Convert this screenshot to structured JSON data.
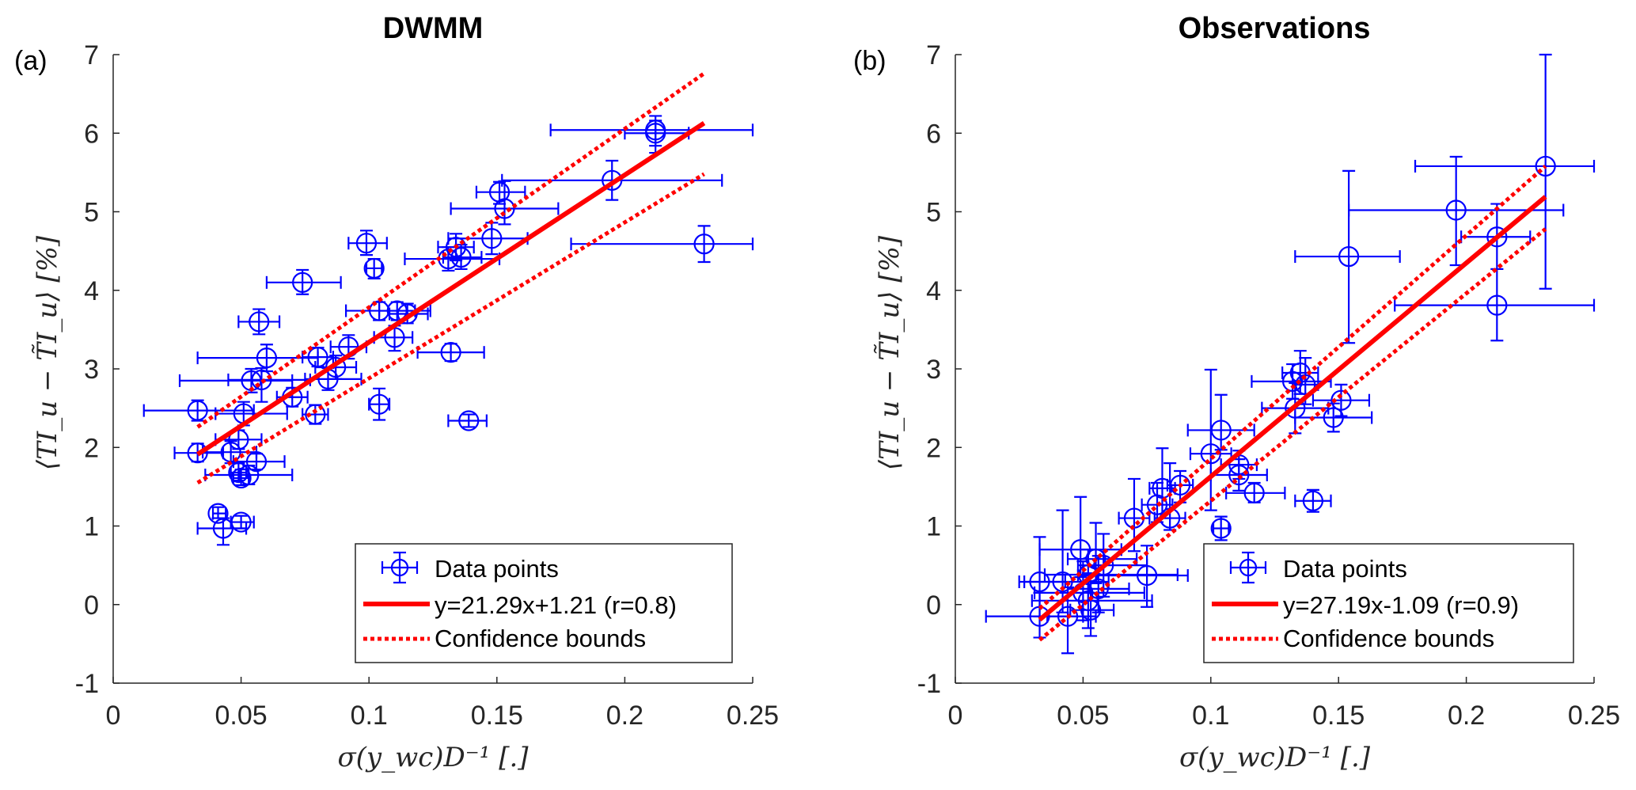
{
  "chart_data": [
    {
      "type": "scatter",
      "panel_label": "(a)",
      "title": "DWMM",
      "xlabel": "σ(y_wc)D⁻¹ [.]",
      "ylabel": "⟨TI_u − T̃I_u⟩ [%]",
      "xlim": [
        0,
        0.25
      ],
      "ylim": [
        -1,
        7
      ],
      "xticks": [
        0,
        0.05,
        0.1,
        0.15,
        0.2,
        0.25
      ],
      "xtick_labels": [
        "0",
        "0.05",
        "0.1",
        "0.15",
        "0.2",
        "0.25"
      ],
      "yticks": [
        -1,
        0,
        1,
        2,
        3,
        4,
        5,
        6,
        7
      ],
      "ytick_labels": [
        "-1",
        "0",
        "1",
        "2",
        "3",
        "4",
        "5",
        "6",
        "7"
      ],
      "grid": false,
      "legend_position": "bottom-right",
      "legend": [
        "Data points",
        "y=21.29x+1.21 (r=0.8)",
        "Confidence bounds"
      ],
      "fit": {
        "slope": 21.29,
        "intercept": 1.21,
        "r": 0.8,
        "x_range": [
          0.033,
          0.231
        ]
      },
      "confidence_bounds": {
        "upper": [
          [
            0.033,
            2.26
          ],
          [
            0.231,
            6.76
          ]
        ],
        "lower": [
          [
            0.033,
            1.55
          ],
          [
            0.231,
            5.48
          ]
        ]
      },
      "points": [
        {
          "x": 0.212,
          "y": 6.04,
          "xlo": 0.171,
          "xhi": 0.25,
          "ylo": 5.75,
          "yhi": 6.22
        },
        {
          "x": 0.212,
          "y": 6.0,
          "xlo": 0.2,
          "xhi": 0.225,
          "ylo": 5.84,
          "yhi": 6.16
        },
        {
          "x": 0.195,
          "y": 5.4,
          "xlo": 0.152,
          "xhi": 0.238,
          "ylo": 5.15,
          "yhi": 5.65
        },
        {
          "x": 0.231,
          "y": 4.59,
          "xlo": 0.179,
          "xhi": 0.25,
          "ylo": 4.36,
          "yhi": 4.82
        },
        {
          "x": 0.151,
          "y": 5.25,
          "xlo": 0.142,
          "xhi": 0.161,
          "ylo": 5.1,
          "yhi": 5.38
        },
        {
          "x": 0.153,
          "y": 5.04,
          "xlo": 0.132,
          "xhi": 0.174,
          "ylo": 4.84,
          "yhi": 5.39
        },
        {
          "x": 0.148,
          "y": 4.66,
          "xlo": 0.131,
          "xhi": 0.162,
          "ylo": 4.46,
          "yhi": 4.86
        },
        {
          "x": 0.134,
          "y": 4.55,
          "xlo": 0.127,
          "xhi": 0.141,
          "ylo": 4.38,
          "yhi": 4.72
        },
        {
          "x": 0.136,
          "y": 4.42,
          "xlo": 0.129,
          "xhi": 0.144,
          "ylo": 4.27,
          "yhi": 4.58
        },
        {
          "x": 0.131,
          "y": 4.4,
          "xlo": 0.114,
          "xhi": 0.151,
          "ylo": 4.25,
          "yhi": 4.55
        },
        {
          "x": 0.099,
          "y": 4.6,
          "xlo": 0.092,
          "xhi": 0.107,
          "ylo": 4.45,
          "yhi": 4.76
        },
        {
          "x": 0.102,
          "y": 4.28,
          "xlo": 0.099,
          "xhi": 0.105,
          "ylo": 4.15,
          "yhi": 4.4
        },
        {
          "x": 0.074,
          "y": 4.1,
          "xlo": 0.06,
          "xhi": 0.089,
          "ylo": 3.95,
          "yhi": 4.26
        },
        {
          "x": 0.057,
          "y": 3.6,
          "xlo": 0.049,
          "xhi": 0.065,
          "ylo": 3.44,
          "yhi": 3.76
        },
        {
          "x": 0.104,
          "y": 3.74,
          "xlo": 0.091,
          "xhi": 0.124,
          "ylo": 3.62,
          "yhi": 3.85
        },
        {
          "x": 0.111,
          "y": 3.74,
          "xlo": 0.104,
          "xhi": 0.118,
          "ylo": 3.62,
          "yhi": 3.85
        },
        {
          "x": 0.115,
          "y": 3.7,
          "xlo": 0.108,
          "xhi": 0.123,
          "ylo": 3.58,
          "yhi": 3.83
        },
        {
          "x": 0.11,
          "y": 3.4,
          "xlo": 0.102,
          "xhi": 0.117,
          "ylo": 3.23,
          "yhi": 3.55
        },
        {
          "x": 0.092,
          "y": 3.28,
          "xlo": 0.085,
          "xhi": 0.099,
          "ylo": 3.13,
          "yhi": 3.43
        },
        {
          "x": 0.132,
          "y": 3.21,
          "xlo": 0.119,
          "xhi": 0.145,
          "ylo": 3.1,
          "yhi": 3.32
        },
        {
          "x": 0.06,
          "y": 3.14,
          "xlo": 0.033,
          "xhi": 0.08,
          "ylo": 2.97,
          "yhi": 3.31
        },
        {
          "x": 0.08,
          "y": 3.15,
          "xlo": 0.074,
          "xhi": 0.086,
          "ylo": 3.03,
          "yhi": 3.27
        },
        {
          "x": 0.087,
          "y": 3.02,
          "xlo": 0.079,
          "xhi": 0.095,
          "ylo": 2.87,
          "yhi": 3.17
        },
        {
          "x": 0.054,
          "y": 2.85,
          "xlo": 0.026,
          "xhi": 0.07,
          "ylo": 2.7,
          "yhi": 3.0
        },
        {
          "x": 0.058,
          "y": 2.86,
          "xlo": 0.045,
          "xhi": 0.077,
          "ylo": 2.58,
          "yhi": 3.01
        },
        {
          "x": 0.084,
          "y": 2.87,
          "xlo": 0.075,
          "xhi": 0.097,
          "ylo": 2.73,
          "yhi": 3.01
        },
        {
          "x": 0.07,
          "y": 2.64,
          "xlo": 0.064,
          "xhi": 0.076,
          "ylo": 2.52,
          "yhi": 2.76
        },
        {
          "x": 0.079,
          "y": 2.42,
          "xlo": 0.074,
          "xhi": 0.084,
          "ylo": 2.3,
          "yhi": 2.54
        },
        {
          "x": 0.104,
          "y": 2.55,
          "xlo": 0.1,
          "xhi": 0.108,
          "ylo": 2.35,
          "yhi": 2.75
        },
        {
          "x": 0.139,
          "y": 2.34,
          "xlo": 0.131,
          "xhi": 0.146,
          "ylo": 2.26,
          "yhi": 2.42
        },
        {
          "x": 0.033,
          "y": 2.47,
          "xlo": 0.012,
          "xhi": 0.055,
          "ylo": 2.34,
          "yhi": 2.6
        },
        {
          "x": 0.051,
          "y": 2.43,
          "xlo": 0.04,
          "xhi": 0.068,
          "ylo": 2.28,
          "yhi": 2.58
        },
        {
          "x": 0.049,
          "y": 2.1,
          "xlo": 0.04,
          "xhi": 0.058,
          "ylo": 1.98,
          "yhi": 2.22
        },
        {
          "x": 0.033,
          "y": 1.93,
          "xlo": 0.024,
          "xhi": 0.043,
          "ylo": 1.82,
          "yhi": 2.05
        },
        {
          "x": 0.046,
          "y": 1.94,
          "xlo": 0.035,
          "xhi": 0.056,
          "ylo": 1.8,
          "yhi": 2.08
        },
        {
          "x": 0.056,
          "y": 1.82,
          "xlo": 0.047,
          "xhi": 0.067,
          "ylo": 1.72,
          "yhi": 1.92
        },
        {
          "x": 0.049,
          "y": 1.68,
          "xlo": 0.046,
          "xhi": 0.052,
          "ylo": 1.58,
          "yhi": 1.8
        },
        {
          "x": 0.053,
          "y": 1.65,
          "xlo": 0.036,
          "xhi": 0.07,
          "ylo": 1.53,
          "yhi": 1.77
        },
        {
          "x": 0.05,
          "y": 1.61,
          "xlo": 0.047,
          "xhi": 0.053,
          "ylo": 1.52,
          "yhi": 1.72
        },
        {
          "x": 0.041,
          "y": 1.16,
          "xlo": 0.039,
          "xhi": 0.044,
          "ylo": 1.1,
          "yhi": 1.24
        },
        {
          "x": 0.05,
          "y": 1.05,
          "xlo": 0.046,
          "xhi": 0.055,
          "ylo": 0.97,
          "yhi": 1.13
        },
        {
          "x": 0.043,
          "y": 0.97,
          "xlo": 0.033,
          "xhi": 0.052,
          "ylo": 0.76,
          "yhi": 1.1
        }
      ]
    },
    {
      "type": "scatter",
      "panel_label": "(b)",
      "title": "Observations",
      "xlabel": "σ(y_wc)D⁻¹ [.]",
      "ylabel": "⟨TI_u − T̃I_u⟩ [%]",
      "xlim": [
        0,
        0.25
      ],
      "ylim": [
        -1,
        7
      ],
      "xticks": [
        0,
        0.05,
        0.1,
        0.15,
        0.2,
        0.25
      ],
      "xtick_labels": [
        "0",
        "0.05",
        "0.1",
        "0.15",
        "0.2",
        "0.25"
      ],
      "yticks": [
        -1,
        0,
        1,
        2,
        3,
        4,
        5,
        6,
        7
      ],
      "ytick_labels": [
        "-1",
        "0",
        "1",
        "2",
        "3",
        "4",
        "5",
        "6",
        "7"
      ],
      "grid": false,
      "legend_position": "bottom-right",
      "legend": [
        "Data points",
        "y=27.19x-1.09 (r=0.9)",
        "Confidence bounds"
      ],
      "fit": {
        "slope": 27.19,
        "intercept": -1.09,
        "r": 0.9,
        "x_range": [
          0.033,
          0.231
        ]
      },
      "confidence_bounds": {
        "upper": [
          [
            0.033,
            -0.05
          ],
          [
            0.231,
            5.58
          ]
        ],
        "lower": [
          [
            0.033,
            -0.45
          ],
          [
            0.231,
            4.78
          ]
        ]
      },
      "points": [
        {
          "x": 0.231,
          "y": 5.58,
          "xlo": 0.18,
          "xhi": 0.25,
          "ylo": 4.02,
          "yhi": 7.0
        },
        {
          "x": 0.196,
          "y": 5.02,
          "xlo": 0.154,
          "xhi": 0.238,
          "ylo": 4.32,
          "yhi": 5.7
        },
        {
          "x": 0.212,
          "y": 4.68,
          "xlo": 0.198,
          "xhi": 0.225,
          "ylo": 4.27,
          "yhi": 5.1
        },
        {
          "x": 0.212,
          "y": 3.81,
          "xlo": 0.172,
          "xhi": 0.25,
          "ylo": 3.36,
          "yhi": 4.27
        },
        {
          "x": 0.154,
          "y": 4.43,
          "xlo": 0.133,
          "xhi": 0.174,
          "ylo": 3.33,
          "yhi": 5.52
        },
        {
          "x": 0.135,
          "y": 2.95,
          "xlo": 0.128,
          "xhi": 0.142,
          "ylo": 2.68,
          "yhi": 3.23
        },
        {
          "x": 0.132,
          "y": 2.84,
          "xlo": 0.116,
          "xhi": 0.147,
          "ylo": 2.62,
          "yhi": 3.06
        },
        {
          "x": 0.137,
          "y": 2.8,
          "xlo": 0.132,
          "xhi": 0.142,
          "ylo": 2.55,
          "yhi": 3.14
        },
        {
          "x": 0.133,
          "y": 2.5,
          "xlo": 0.12,
          "xhi": 0.146,
          "ylo": 2.18,
          "yhi": 2.82
        },
        {
          "x": 0.151,
          "y": 2.6,
          "xlo": 0.14,
          "xhi": 0.162,
          "ylo": 2.4,
          "yhi": 2.8
        },
        {
          "x": 0.148,
          "y": 2.38,
          "xlo": 0.133,
          "xhi": 0.163,
          "ylo": 2.2,
          "yhi": 2.56
        },
        {
          "x": 0.104,
          "y": 2.22,
          "xlo": 0.091,
          "xhi": 0.117,
          "ylo": 1.97,
          "yhi": 2.67
        },
        {
          "x": 0.1,
          "y": 1.92,
          "xlo": 0.092,
          "xhi": 0.108,
          "ylo": 1.2,
          "yhi": 2.99
        },
        {
          "x": 0.111,
          "y": 1.78,
          "xlo": 0.104,
          "xhi": 0.118,
          "ylo": 1.6,
          "yhi": 1.96
        },
        {
          "x": 0.111,
          "y": 1.65,
          "xlo": 0.1,
          "xhi": 0.122,
          "ylo": 1.45,
          "yhi": 1.85
        },
        {
          "x": 0.117,
          "y": 1.42,
          "xlo": 0.106,
          "xhi": 0.129,
          "ylo": 1.3,
          "yhi": 1.55
        },
        {
          "x": 0.14,
          "y": 1.32,
          "xlo": 0.133,
          "xhi": 0.147,
          "ylo": 1.18,
          "yhi": 1.46
        },
        {
          "x": 0.104,
          "y": 0.97,
          "xlo": 0.101,
          "xhi": 0.107,
          "ylo": 0.82,
          "yhi": 1.12
        },
        {
          "x": 0.081,
          "y": 1.48,
          "xlo": 0.076,
          "xhi": 0.086,
          "ylo": 1.1,
          "yhi": 1.99
        },
        {
          "x": 0.088,
          "y": 1.52,
          "xlo": 0.083,
          "xhi": 0.093,
          "ylo": 1.3,
          "yhi": 1.7
        },
        {
          "x": 0.079,
          "y": 1.27,
          "xlo": 0.073,
          "xhi": 0.085,
          "ylo": 1.05,
          "yhi": 1.55
        },
        {
          "x": 0.084,
          "y": 1.1,
          "xlo": 0.078,
          "xhi": 0.09,
          "ylo": 0.95,
          "yhi": 1.8
        },
        {
          "x": 0.07,
          "y": 1.1,
          "xlo": 0.064,
          "xhi": 0.076,
          "ylo": 0.68,
          "yhi": 1.6
        },
        {
          "x": 0.075,
          "y": 0.37,
          "xlo": 0.048,
          "xhi": 0.091,
          "ylo": -0.03,
          "yhi": 0.75
        },
        {
          "x": 0.049,
          "y": 0.7,
          "xlo": 0.033,
          "xhi": 0.065,
          "ylo": 0.35,
          "yhi": 1.37
        },
        {
          "x": 0.055,
          "y": 0.58,
          "xlo": 0.044,
          "xhi": 0.071,
          "ylo": 0.27,
          "yhi": 1.04
        },
        {
          "x": 0.058,
          "y": 0.5,
          "xlo": 0.048,
          "xhi": 0.075,
          "ylo": 0.1,
          "yhi": 0.9
        },
        {
          "x": 0.052,
          "y": 0.38,
          "xlo": 0.035,
          "xhi": 0.087,
          "ylo": 0.05,
          "yhi": 0.7
        },
        {
          "x": 0.056,
          "y": 0.2,
          "xlo": 0.044,
          "xhi": 0.068,
          "ylo": -0.1,
          "yhi": 0.62
        },
        {
          "x": 0.05,
          "y": 0.15,
          "xlo": 0.031,
          "xhi": 0.074,
          "ylo": -0.2,
          "yhi": 0.55
        },
        {
          "x": 0.052,
          "y": 0.05,
          "xlo": 0.03,
          "xhi": 0.077,
          "ylo": -0.3,
          "yhi": 0.4
        },
        {
          "x": 0.033,
          "y": 0.29,
          "xlo": 0.025,
          "xhi": 0.043,
          "ylo": -0.15,
          "yhi": 0.86
        },
        {
          "x": 0.042,
          "y": 0.29,
          "xlo": 0.027,
          "xhi": 0.06,
          "ylo": -0.1,
          "yhi": 1.2
        },
        {
          "x": 0.033,
          "y": -0.15,
          "xlo": 0.012,
          "xhi": 0.05,
          "ylo": -0.42,
          "yhi": 0.15
        },
        {
          "x": 0.044,
          "y": -0.15,
          "xlo": 0.036,
          "xhi": 0.055,
          "ylo": -0.62,
          "yhi": 0.22
        },
        {
          "x": 0.053,
          "y": -0.07,
          "xlo": 0.045,
          "xhi": 0.062,
          "ylo": -0.4,
          "yhi": 0.3
        }
      ]
    }
  ],
  "colors": {
    "points": "#0000ff",
    "fit": "#ff0000",
    "axis": "#262626"
  }
}
